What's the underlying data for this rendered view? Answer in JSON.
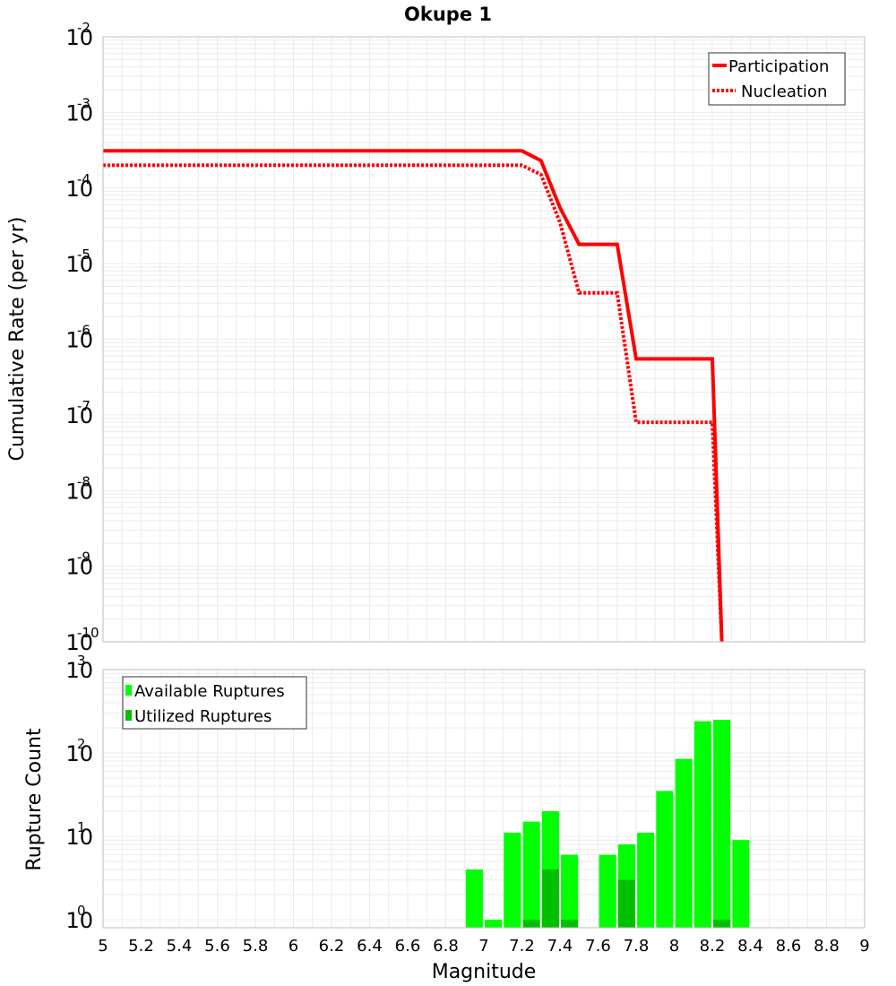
{
  "title": "Okupe 1",
  "xlabel": "Magnitude",
  "colors": {
    "participation": "#ff0000",
    "nucleation": "#ff0000",
    "available": "#00ff00",
    "utilized": "#00c000",
    "grid": "#ebebeb",
    "frame": "#bdbdbd"
  },
  "chart_data": [
    {
      "type": "line",
      "ylabel": "Cumulative Rate (per yr)",
      "yscale": "log",
      "xlim": [
        5,
        9
      ],
      "ylim": [
        1e-10,
        0.01
      ],
      "grid": true,
      "legend_position": "top-right",
      "y_ticks": [
        {
          "base": "10",
          "exp": "-10",
          "value": 1e-10
        },
        {
          "base": "10",
          "exp": "-9",
          "value": 1e-09
        },
        {
          "base": "10",
          "exp": "-8",
          "value": 1e-08
        },
        {
          "base": "10",
          "exp": "-7",
          "value": 1e-07
        },
        {
          "base": "10",
          "exp": "-6",
          "value": 1e-06
        },
        {
          "base": "10",
          "exp": "-5",
          "value": 1e-05
        },
        {
          "base": "10",
          "exp": "-4",
          "value": 0.0001
        },
        {
          "base": "10",
          "exp": "-3",
          "value": 0.001
        },
        {
          "base": "10",
          "exp": "-2",
          "value": 0.01
        }
      ],
      "series": [
        {
          "name": "Participation",
          "style": "solid",
          "x": [
            5.0,
            7.2,
            7.3,
            7.4,
            7.5,
            7.6,
            7.7,
            7.8,
            7.9,
            8.0,
            8.1,
            8.2,
            8.25
          ],
          "y": [
            0.00031,
            0.00031,
            0.00023,
            5.5e-05,
            1.8e-05,
            1.8e-05,
            1.8e-05,
            5.5e-07,
            5.5e-07,
            5.5e-07,
            5.5e-07,
            5.5e-07,
            1e-10
          ]
        },
        {
          "name": "Nucleation",
          "style": "dotted",
          "x": [
            5.0,
            7.2,
            7.3,
            7.4,
            7.5,
            7.6,
            7.7,
            7.8,
            7.9,
            8.0,
            8.1,
            8.2,
            8.25
          ],
          "y": [
            0.0002,
            0.0002,
            0.00015,
            3.5e-05,
            4.1e-06,
            4.1e-06,
            4.1e-06,
            8e-08,
            8e-08,
            8e-08,
            8e-08,
            8e-08,
            1e-10
          ]
        }
      ]
    },
    {
      "type": "bar",
      "ylabel": "Rupture Count",
      "yscale": "log",
      "xlim": [
        5,
        9
      ],
      "ylim": [
        0.8,
        1000
      ],
      "grid": true,
      "legend_position": "top-left",
      "x_ticks": [
        "5",
        "5.2",
        "5.4",
        "5.6",
        "5.8",
        "6",
        "6.2",
        "6.4",
        "6.6",
        "6.8",
        "7",
        "7.2",
        "7.4",
        "7.6",
        "7.8",
        "8",
        "8.2",
        "8.4",
        "8.6",
        "8.8",
        "9"
      ],
      "y_ticks": [
        {
          "base": "10",
          "exp": "0",
          "value": 1
        },
        {
          "base": "10",
          "exp": "1",
          "value": 10
        },
        {
          "base": "10",
          "exp": "2",
          "value": 100
        },
        {
          "base": "10",
          "exp": "3",
          "value": 1000
        }
      ],
      "bar_width": 0.09,
      "series": [
        {
          "name": "Available Ruptures",
          "x": [
            6.95,
            7.05,
            7.15,
            7.25,
            7.35,
            7.45,
            7.65,
            7.75,
            7.85,
            7.95,
            8.05,
            8.15,
            8.25,
            8.35
          ],
          "values": [
            4,
            1,
            11,
            15,
            20,
            6,
            6,
            8,
            11,
            35,
            85,
            240,
            250,
            9
          ]
        },
        {
          "name": "Utilized Ruptures",
          "x": [
            7.25,
            7.35,
            7.45,
            7.75,
            8.25
          ],
          "values": [
            1,
            4,
            1,
            3,
            1
          ]
        }
      ]
    }
  ]
}
